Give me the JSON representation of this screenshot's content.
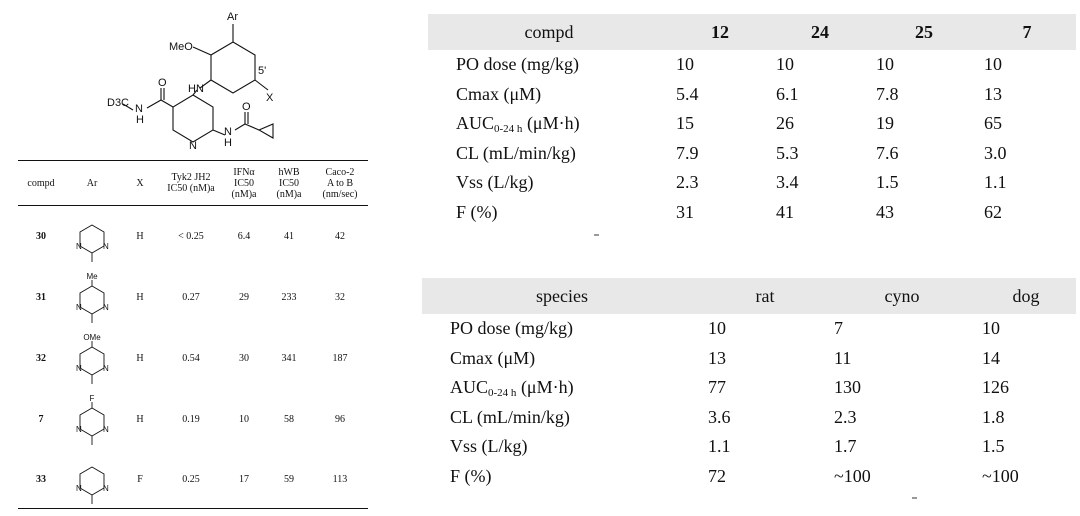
{
  "scaffold": {
    "ar": "Ar",
    "meo": "MeO",
    "pos5": "5'",
    "x": "X",
    "hn": "HN",
    "d3c": "D3C",
    "n_amide": "N",
    "h_amide": "H",
    "o1": "O",
    "o2": "O",
    "n_ring": "N",
    "n_h": "N",
    "h2": "H"
  },
  "sar_table": {
    "headers": {
      "compd": "compd",
      "ar": "Ar",
      "x": "X",
      "tyk2": [
        "Tyk2 JH2",
        "IC50 (nM)a"
      ],
      "ifn": [
        "IFNα",
        "IC50",
        "(nM)a"
      ],
      "hwb": [
        "hWB",
        "IC50",
        "(nM)a"
      ],
      "caco": [
        "Caco-2",
        "A to B",
        "(nm/sec)"
      ]
    },
    "rows": [
      {
        "compd": "30",
        "ar_sub": "",
        "x": "H",
        "tyk2": "< 0.25",
        "ifn": "6.4",
        "hwb": "41",
        "caco": "42"
      },
      {
        "compd": "31",
        "ar_sub": "Me",
        "x": "H",
        "tyk2": "0.27",
        "ifn": "29",
        "hwb": "233",
        "caco": "32"
      },
      {
        "compd": "32",
        "ar_sub": "OMe",
        "x": "H",
        "tyk2": "0.54",
        "ifn": "30",
        "hwb": "341",
        "caco": "187"
      },
      {
        "compd": "7",
        "ar_sub": "F",
        "x": "H",
        "tyk2": "0.19",
        "ifn": "10",
        "hwb": "58",
        "caco": "96"
      },
      {
        "compd": "33",
        "ar_sub": "",
        "x": "F",
        "tyk2": "0.25",
        "ifn": "17",
        "hwb": "59",
        "caco": "113"
      }
    ],
    "ring_atom": "N"
  },
  "pk_table_1": {
    "header": [
      "compd",
      "12",
      "24",
      "25",
      "7"
    ],
    "rows": [
      {
        "label": "PO dose (mg/kg)",
        "values": [
          "10",
          "10",
          "10",
          "10"
        ]
      },
      {
        "label": "Cmax (μM)",
        "values": [
          "5.4",
          "6.1",
          "7.8",
          "13"
        ]
      },
      {
        "label_main": "AUC",
        "label_sub": "0-24 h",
        "label_tail": " (μM·h)",
        "values": [
          "15",
          "26",
          "19",
          "65"
        ]
      },
      {
        "label": "CL (mL/min/kg)",
        "values": [
          "7.9",
          "5.3",
          "7.6",
          "3.0"
        ]
      },
      {
        "label": "Vss (L/kg)",
        "values": [
          "2.3",
          "3.4",
          "1.5",
          "1.1"
        ]
      },
      {
        "label": "F (%)",
        "values": [
          "31",
          "41",
          "43",
          "62"
        ]
      }
    ]
  },
  "pk_table_2": {
    "header": [
      "species",
      "rat",
      "cyno",
      "dog"
    ],
    "rows": [
      {
        "label": "PO dose (mg/kg)",
        "values": [
          "10",
          "7",
          "10"
        ]
      },
      {
        "label": "Cmax (μM)",
        "values": [
          "13",
          "11",
          "14"
        ]
      },
      {
        "label_main": "AUC",
        "label_sub": "0-24 h",
        "label_tail": " (μM·h)",
        "values": [
          "77",
          "130",
          "126"
        ]
      },
      {
        "label": "CL (mL/min/kg)",
        "values": [
          "3.6",
          "2.3",
          "1.8"
        ]
      },
      {
        "label": "Vss (L/kg)",
        "values": [
          "1.1",
          "1.7",
          "1.5"
        ]
      },
      {
        "label": "F (%)",
        "values": [
          "72",
          "~100",
          "~100"
        ]
      }
    ]
  }
}
